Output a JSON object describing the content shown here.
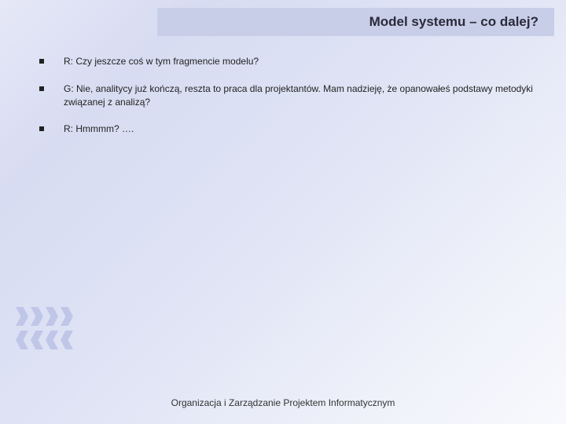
{
  "title": "Model systemu – co dalej?",
  "bullets": [
    "R: Czy jeszcze coś w tym fragmencie modelu?",
    "G: Nie, analitycy już kończą, reszta to praca dla projektantów. Mam nadzieję, że opanowałeś podstawy metodyki związanej z analizą?",
    "R: Hmmmm? …."
  ],
  "footer": "Organizacja i Zarządzanie Projektem Informatycznym",
  "colors": {
    "title_bar_bg": "#c8cee8",
    "chevron": "#c0c6e8",
    "text": "#222222"
  }
}
